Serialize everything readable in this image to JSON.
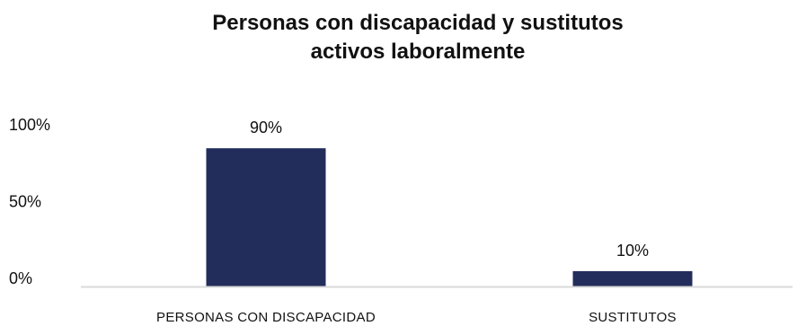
{
  "chart_data": {
    "type": "bar",
    "title_lines": [
      "Personas con discapacidad y sustitutos",
      "activos laboralmente"
    ],
    "categories": [
      "PERSONAS CON DISCAPACIDAD",
      "SUSTITUTOS"
    ],
    "values": [
      90,
      10
    ],
    "data_labels": [
      "90%",
      "10%"
    ],
    "y_ticks": [
      {
        "value": 0,
        "label": "0%"
      },
      {
        "value": 50,
        "label": "50%"
      },
      {
        "value": 100,
        "label": "100%"
      }
    ],
    "ylim": [
      0,
      100
    ],
    "xlabel": "",
    "ylabel": "",
    "grid": false,
    "legend": "none",
    "colors": {
      "bar": "#232d5c",
      "baseline": "#d9d9d9",
      "text": "#111111"
    }
  }
}
